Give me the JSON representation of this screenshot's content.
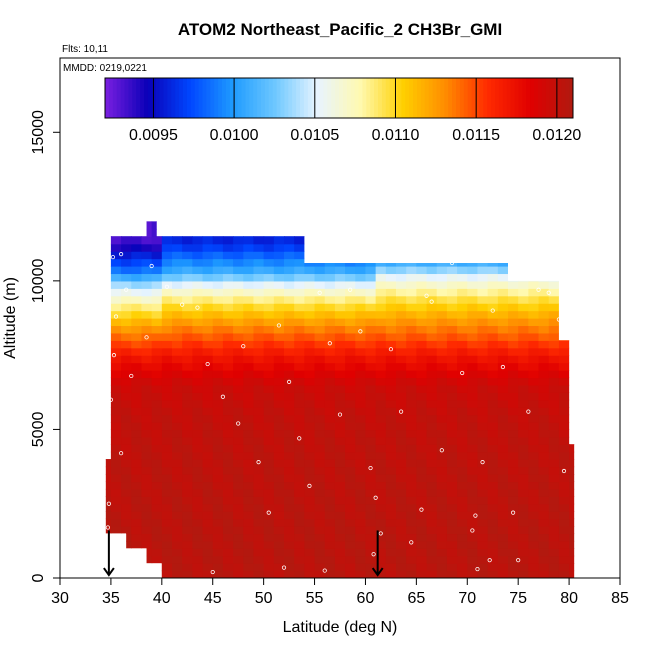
{
  "chart_data": {
    "type": "heatmap",
    "title": "ATOM2 Northeast_Pacific_2 CH3Br_GMI",
    "flights_label": "Flts: 10,11",
    "dates_label": "MMDD: 0219,0221",
    "xlabel": "Latitude (deg N)",
    "ylabel": "Altitude (m)",
    "xlim": [
      30,
      85
    ],
    "ylim": [
      0,
      17500
    ],
    "xticks": [
      "30",
      "35",
      "40",
      "45",
      "50",
      "55",
      "60",
      "65",
      "70",
      "75",
      "80",
      "85"
    ],
    "yticks": [
      "0",
      "5000",
      "10000",
      "15000"
    ],
    "grid": false,
    "colorbar": {
      "position": "top-inside",
      "range": [
        0.0092,
        0.0121
      ],
      "ticks": [
        "0.0095",
        "0.0100",
        "0.0105",
        "0.0110",
        "0.0115",
        "0.0120"
      ],
      "colors": [
        "#7b1fe0",
        "#0a00b8",
        "#0046ff",
        "#1e9bff",
        "#6ec8ff",
        "#e8f4ff",
        "#fff9b0",
        "#ffd000",
        "#ff8c00",
        "#ff2a00",
        "#e00000",
        "#b01a10"
      ]
    },
    "altitude_profile": [
      {
        "alt": 500,
        "value": 0.01205
      },
      {
        "alt": 1500,
        "value": 0.01205
      },
      {
        "alt": 2500,
        "value": 0.01204
      },
      {
        "alt": 3500,
        "value": 0.01203
      },
      {
        "alt": 4500,
        "value": 0.01202
      },
      {
        "alt": 5500,
        "value": 0.012
      },
      {
        "alt": 6500,
        "value": 0.01195
      },
      {
        "alt": 7500,
        "value": 0.0117
      },
      {
        "alt": 8500,
        "value": 0.0113
      },
      {
        "alt": 9200,
        "value": 0.01095
      },
      {
        "alt": 9800,
        "value": 0.0106
      },
      {
        "alt": 10300,
        "value": 0.0101
      },
      {
        "alt": 10800,
        "value": 0.00985
      },
      {
        "alt": 11300,
        "value": 0.0096
      }
    ],
    "domain_outline": [
      [
        34.5,
        1500
      ],
      [
        34.5,
        4000
      ],
      [
        35.0,
        4000
      ],
      [
        35.0,
        11500
      ],
      [
        38.5,
        11500
      ],
      [
        38.5,
        12000
      ],
      [
        39.5,
        12000
      ],
      [
        39.5,
        11500
      ],
      [
        54.0,
        11500
      ],
      [
        54.0,
        10600
      ],
      [
        74.0,
        10600
      ],
      [
        74.0,
        10000
      ],
      [
        79.0,
        10000
      ],
      [
        79.0,
        8000
      ],
      [
        80.0,
        8000
      ],
      [
        80.0,
        4500
      ],
      [
        80.5,
        4500
      ],
      [
        80.5,
        0
      ],
      [
        40.0,
        0
      ],
      [
        40.0,
        500
      ],
      [
        38.5,
        500
      ],
      [
        38.5,
        1000
      ],
      [
        36.5,
        1000
      ],
      [
        36.5,
        1500
      ]
    ],
    "flight_track_points": [
      [
        35.2,
        10800
      ],
      [
        36.0,
        10900
      ],
      [
        36.5,
        9700
      ],
      [
        35.5,
        8800
      ],
      [
        35.3,
        7500
      ],
      [
        35.0,
        6000
      ],
      [
        34.8,
        2500
      ],
      [
        34.7,
        1700
      ],
      [
        36.0,
        4200
      ],
      [
        37.0,
        6800
      ],
      [
        38.5,
        8100
      ],
      [
        39.0,
        10500
      ],
      [
        40.5,
        9800
      ],
      [
        42.0,
        9200
      ],
      [
        43.5,
        9100
      ],
      [
        44.5,
        7200
      ],
      [
        46.0,
        6100
      ],
      [
        47.5,
        5200
      ],
      [
        48.0,
        7800
      ],
      [
        49.5,
        3900
      ],
      [
        50.5,
        2200
      ],
      [
        51.5,
        8500
      ],
      [
        52.5,
        6600
      ],
      [
        53.5,
        4700
      ],
      [
        54.5,
        3100
      ],
      [
        55.5,
        9600
      ],
      [
        56.5,
        7900
      ],
      [
        57.5,
        5500
      ],
      [
        58.5,
        9700
      ],
      [
        59.5,
        8300
      ],
      [
        60.5,
        3700
      ],
      [
        61.0,
        2700
      ],
      [
        61.5,
        1500
      ],
      [
        62.5,
        7700
      ],
      [
        63.5,
        5600
      ],
      [
        64.5,
        1200
      ],
      [
        65.5,
        2300
      ],
      [
        66.5,
        9300
      ],
      [
        67.5,
        4300
      ],
      [
        68.5,
        10600
      ],
      [
        69.5,
        6900
      ],
      [
        70.5,
        1600
      ],
      [
        71.5,
        3900
      ],
      [
        72.5,
        9000
      ],
      [
        73.5,
        7100
      ],
      [
        74.5,
        2200
      ],
      [
        75.0,
        600
      ],
      [
        76.0,
        5600
      ],
      [
        77.0,
        9700
      ],
      [
        78.0,
        9600
      ],
      [
        79.0,
        8700
      ],
      [
        79.5,
        3600
      ],
      [
        71.0,
        300
      ],
      [
        66.0,
        9500
      ],
      [
        45.0,
        200
      ],
      [
        52.0,
        350
      ],
      [
        56.0,
        250
      ],
      [
        60.8,
        800
      ],
      [
        70.8,
        2100
      ],
      [
        72.2,
        600
      ]
    ],
    "arrows_at_latitude": [
      34.8,
      61.2
    ]
  }
}
